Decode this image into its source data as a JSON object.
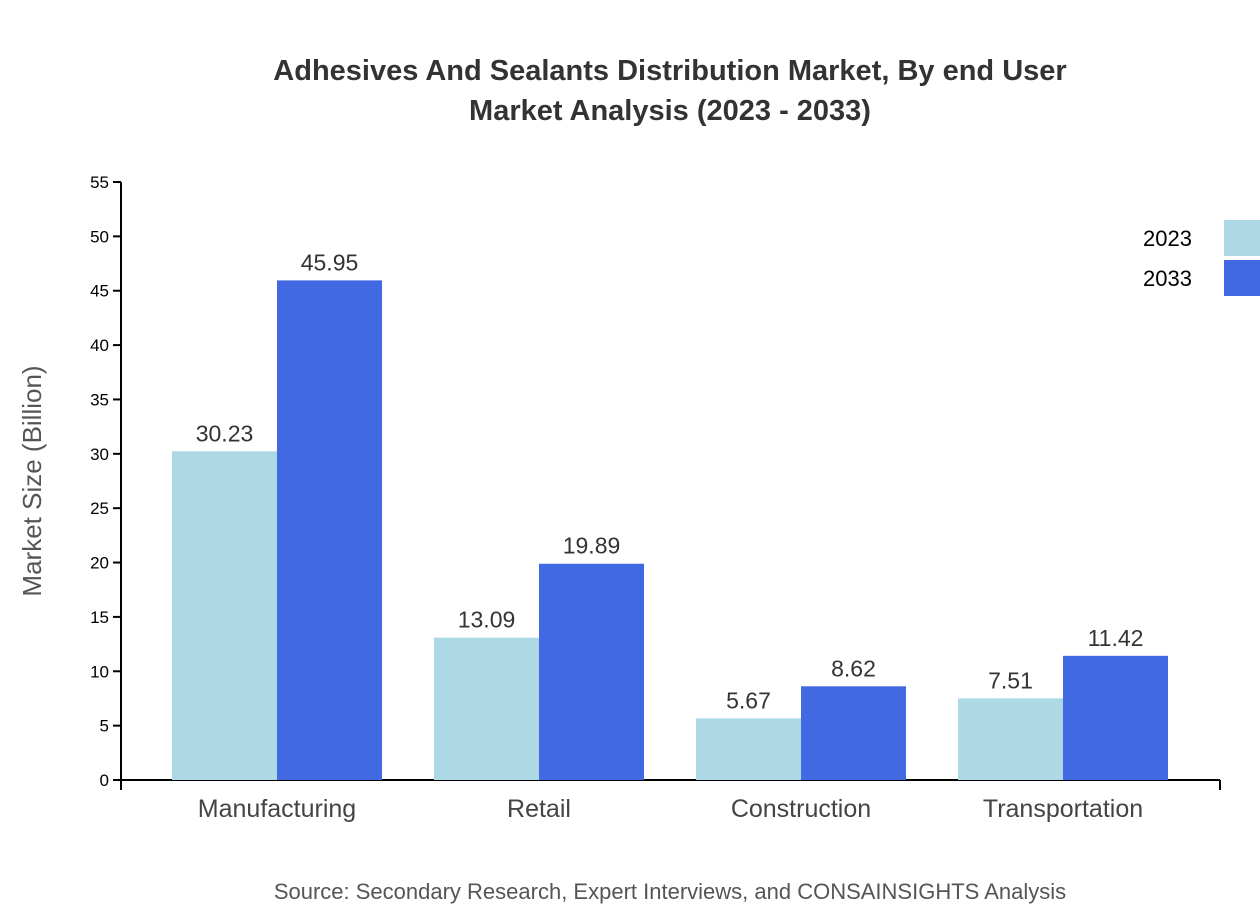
{
  "chart_data": {
    "type": "bar",
    "title_lines": [
      "Adhesives And Sealants Distribution Market, By end User",
      "Market Analysis (2023 - 2033)"
    ],
    "ylabel": "Market Size (Billion)",
    "xlabel": "",
    "ylim": [
      0,
      55
    ],
    "yticks": [
      0,
      5,
      10,
      15,
      20,
      25,
      30,
      35,
      40,
      45,
      50,
      55
    ],
    "categories": [
      "Manufacturing",
      "Retail",
      "Construction",
      "Transportation"
    ],
    "series": [
      {
        "name": "2023",
        "color": "#ADD8E6",
        "values": [
          30.23,
          13.09,
          5.67,
          7.51
        ]
      },
      {
        "name": "2033",
        "color": "#4169E1",
        "values": [
          45.95,
          19.89,
          8.62,
          11.42
        ]
      }
    ],
    "grid": false,
    "legend_position": "top-right",
    "source": "Source: Secondary Research, Expert Interviews, and CONSAINSIGHTS Analysis"
  }
}
